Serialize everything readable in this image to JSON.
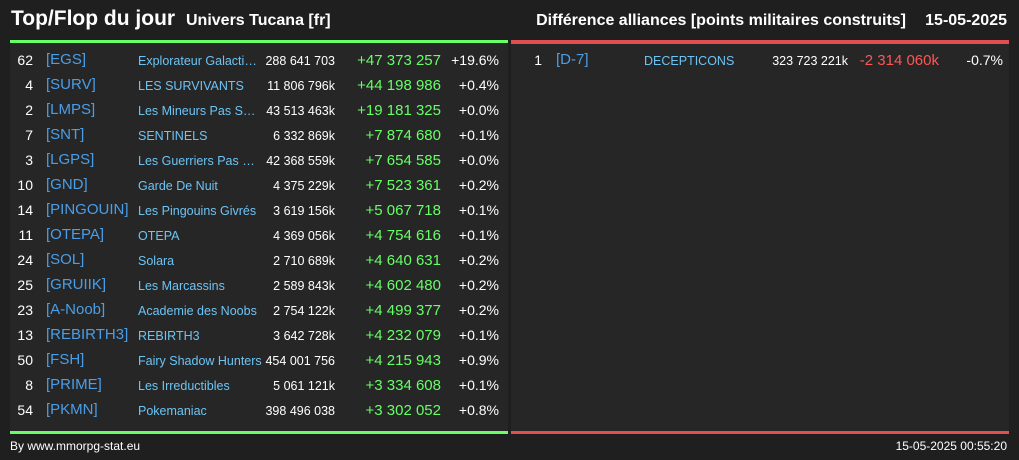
{
  "header": {
    "title": "Top/Flop du jour",
    "subtitle": "Univers Tucana [fr]",
    "metric": "Différence alliances [points militaires construits]",
    "date": "15-05-2025"
  },
  "colors": {
    "top_accent": "#66ff66",
    "flop_accent": "#e05050",
    "tag": "#4a9ee8",
    "name": "#6cc4f5",
    "positive": "#66ff66",
    "negative": "#ff5555"
  },
  "top": {
    "rows": [
      {
        "rank": "62",
        "tag": "[EGS]",
        "name": "Explorateur Galactique",
        "points": "288 641 703",
        "delta": "+47 373 257",
        "pct": "+19.6%"
      },
      {
        "rank": "4",
        "tag": "[SURV]",
        "name": "LES SURVIVANTS",
        "points": "11 806 796k",
        "delta": "+44 198 986",
        "pct": "+0.4%"
      },
      {
        "rank": "2",
        "tag": "[LMPS]",
        "name": "Les Mineurs Pas Sages",
        "points": "43 513 463k",
        "delta": "+19 181 325",
        "pct": "+0.0%"
      },
      {
        "rank": "7",
        "tag": "[SNT]",
        "name": "SENTINELS",
        "points": "6 332 869k",
        "delta": "+7 874 680",
        "pct": "+0.1%"
      },
      {
        "rank": "3",
        "tag": "[LGPS]",
        "name": "Les Guerriers Pas Sages",
        "points": "42 368 559k",
        "delta": "+7 654 585",
        "pct": "+0.0%"
      },
      {
        "rank": "10",
        "tag": "[GND]",
        "name": "Garde De Nuit",
        "points": "4 375 229k",
        "delta": "+7 523 361",
        "pct": "+0.2%"
      },
      {
        "rank": "14",
        "tag": "[PINGOUIN]",
        "name": "Les Pingouins Givrés",
        "points": "3 619 156k",
        "delta": "+5 067 718",
        "pct": "+0.1%"
      },
      {
        "rank": "11",
        "tag": "[OTEPA]",
        "name": "OTEPA",
        "points": "4 369 056k",
        "delta": "+4 754 616",
        "pct": "+0.1%"
      },
      {
        "rank": "24",
        "tag": "[SOL]",
        "name": "Solara",
        "points": "2 710 689k",
        "delta": "+4 640 631",
        "pct": "+0.2%"
      },
      {
        "rank": "25",
        "tag": "[GRUIIK]",
        "name": "Les Marcassins",
        "points": "2 589 843k",
        "delta": "+4 602 480",
        "pct": "+0.2%"
      },
      {
        "rank": "23",
        "tag": "[A-Noob]",
        "name": "Academie des Noobs",
        "points": "2 754 122k",
        "delta": "+4 499 377",
        "pct": "+0.2%"
      },
      {
        "rank": "13",
        "tag": "[REBIRTH3]",
        "name": "REBIRTH3",
        "points": "3 642 728k",
        "delta": "+4 232 079",
        "pct": "+0.1%"
      },
      {
        "rank": "50",
        "tag": "[FSH]",
        "name": "Fairy Shadow Hunters",
        "points": "454 001 756",
        "delta": "+4 215 943",
        "pct": "+0.9%"
      },
      {
        "rank": "8",
        "tag": "[PRIME]",
        "name": "Les Irreductibles",
        "points": "5 061 121k",
        "delta": "+3 334 608",
        "pct": "+0.1%"
      },
      {
        "rank": "54",
        "tag": "[PKMN]",
        "name": "Pokemaniac",
        "points": "398 496 038",
        "delta": "+3 302 052",
        "pct": "+0.8%"
      }
    ]
  },
  "flop": {
    "rows": [
      {
        "rank": "1",
        "tag": "[D-7]",
        "name": "DECEPTICONS",
        "points": "323 723 221k",
        "delta": "-2 314 060k",
        "pct": "-0.7%"
      }
    ]
  },
  "footer": {
    "credit": "By www.mmorpg-stat.eu",
    "timestamp": "15-05-2025 00:55:20"
  }
}
